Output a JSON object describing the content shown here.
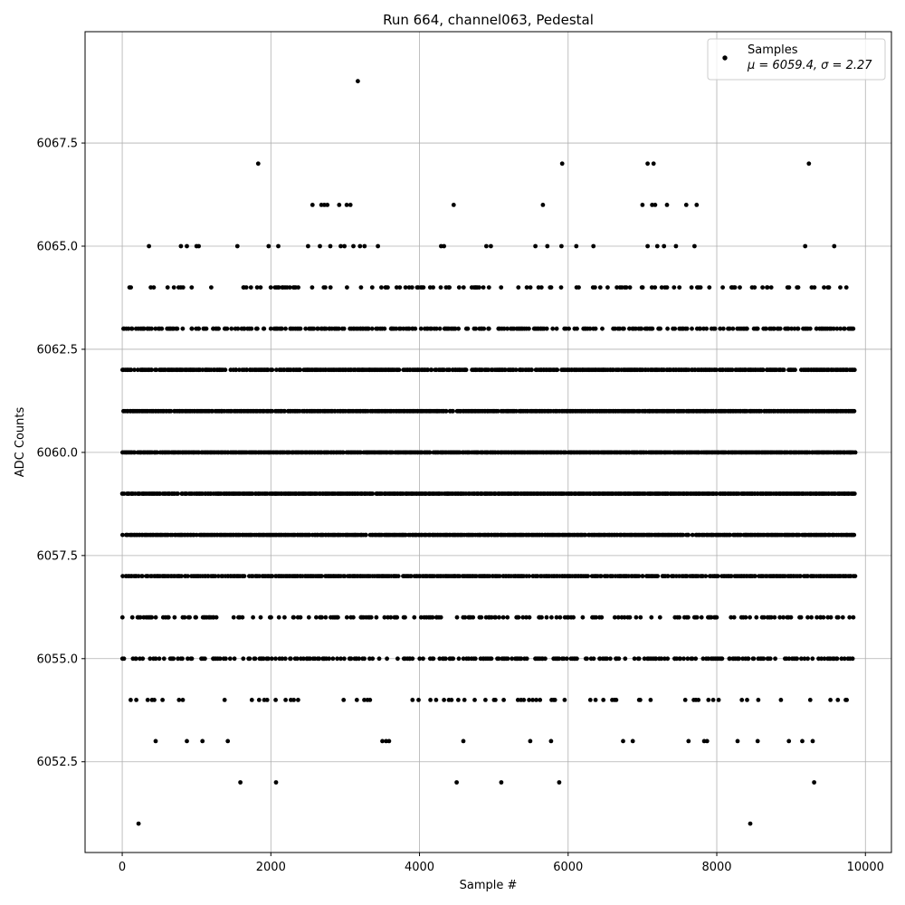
{
  "chart_data": {
    "type": "scatter",
    "title": "Run 664, channel063, Pedestal",
    "xlabel": "Sample #",
    "ylabel": "ADC Counts",
    "xlim": [
      -500,
      10350
    ],
    "ylim": [
      6050.3,
      6070.2
    ],
    "xticks": [
      0,
      2000,
      4000,
      6000,
      8000,
      10000
    ],
    "xtick_labels": [
      "0",
      "2000",
      "4000",
      "6000",
      "8000",
      "10000"
    ],
    "yticks": [
      6052.5,
      6055.0,
      6057.5,
      6060.0,
      6062.5,
      6065.0,
      6067.5
    ],
    "ytick_labels": [
      "6052.5",
      "6055.0",
      "6057.5",
      "6060.0",
      "6062.5",
      "6065.0",
      "6067.5"
    ],
    "grid": true,
    "legend": {
      "placement": "top-right",
      "series_label": "Samples",
      "stats_label": "μ = 6059.4, σ = 2.27"
    },
    "marker_color": "#000000",
    "n_samples": 9850,
    "band_presence": {
      "description": "count of points per ADC value level, read from density of the stripes",
      "6057.0": "dense",
      "6058.0": "dense",
      "6059.0": "dense",
      "6060.0": "dense",
      "6061.0": "dense",
      "6062.0": "dense",
      "6056.0": "medium",
      "6063.0": "medium",
      "6055.0": "medium",
      "6064.0": "sparse",
      "6054.0": "sparse"
    },
    "series": [
      {
        "name": "Samples",
        "outliers": [
          {
            "x": 3170,
            "y": 6069
          },
          {
            "x": 1830,
            "y": 6067
          },
          {
            "x": 5920,
            "y": 6067
          },
          {
            "x": 7070,
            "y": 6067
          },
          {
            "x": 7150,
            "y": 6067
          },
          {
            "x": 9240,
            "y": 6067
          },
          {
            "x": 2560,
            "y": 6066
          },
          {
            "x": 2680,
            "y": 6066
          },
          {
            "x": 2720,
            "y": 6066
          },
          {
            "x": 2760,
            "y": 6066
          },
          {
            "x": 2920,
            "y": 6066
          },
          {
            "x": 3020,
            "y": 6066
          },
          {
            "x": 3070,
            "y": 6066
          },
          {
            "x": 4460,
            "y": 6066
          },
          {
            "x": 5660,
            "y": 6066
          },
          {
            "x": 7000,
            "y": 6066
          },
          {
            "x": 7130,
            "y": 6066
          },
          {
            "x": 7170,
            "y": 6066
          },
          {
            "x": 7330,
            "y": 6066
          },
          {
            "x": 7590,
            "y": 6066
          },
          {
            "x": 7730,
            "y": 6066
          },
          {
            "x": 360,
            "y": 6065
          },
          {
            "x": 790,
            "y": 6065
          },
          {
            "x": 870,
            "y": 6065
          },
          {
            "x": 1000,
            "y": 6065
          },
          {
            "x": 1030,
            "y": 6065
          },
          {
            "x": 1550,
            "y": 6065
          },
          {
            "x": 1970,
            "y": 6065
          },
          {
            "x": 2100,
            "y": 6065
          },
          {
            "x": 2500,
            "y": 6065
          },
          {
            "x": 2660,
            "y": 6065
          },
          {
            "x": 2800,
            "y": 6065
          },
          {
            "x": 2940,
            "y": 6065
          },
          {
            "x": 2990,
            "y": 6065
          },
          {
            "x": 3110,
            "y": 6065
          },
          {
            "x": 3200,
            "y": 6065
          },
          {
            "x": 3260,
            "y": 6065
          },
          {
            "x": 3440,
            "y": 6065
          },
          {
            "x": 4290,
            "y": 6065
          },
          {
            "x": 4330,
            "y": 6065
          },
          {
            "x": 4900,
            "y": 6065
          },
          {
            "x": 4960,
            "y": 6065
          },
          {
            "x": 5560,
            "y": 6065
          },
          {
            "x": 5720,
            "y": 6065
          },
          {
            "x": 5910,
            "y": 6065
          },
          {
            "x": 6110,
            "y": 6065
          },
          {
            "x": 6340,
            "y": 6065
          },
          {
            "x": 7070,
            "y": 6065
          },
          {
            "x": 7200,
            "y": 6065
          },
          {
            "x": 7290,
            "y": 6065
          },
          {
            "x": 7450,
            "y": 6065
          },
          {
            "x": 7700,
            "y": 6065
          },
          {
            "x": 9190,
            "y": 6065
          },
          {
            "x": 9580,
            "y": 6065
          },
          {
            "x": 1590,
            "y": 6052
          },
          {
            "x": 2070,
            "y": 6052
          },
          {
            "x": 4500,
            "y": 6052
          },
          {
            "x": 5100,
            "y": 6052
          },
          {
            "x": 5880,
            "y": 6052
          },
          {
            "x": 9310,
            "y": 6052
          },
          {
            "x": 220,
            "y": 6051
          },
          {
            "x": 8450,
            "y": 6051
          },
          {
            "x": 450,
            "y": 6053
          },
          {
            "x": 870,
            "y": 6053
          },
          {
            "x": 1080,
            "y": 6053
          },
          {
            "x": 1420,
            "y": 6053
          },
          {
            "x": 3500,
            "y": 6053
          },
          {
            "x": 3550,
            "y": 6053
          },
          {
            "x": 3590,
            "y": 6053
          },
          {
            "x": 4590,
            "y": 6053
          },
          {
            "x": 5490,
            "y": 6053
          },
          {
            "x": 5770,
            "y": 6053
          },
          {
            "x": 6740,
            "y": 6053
          },
          {
            "x": 6870,
            "y": 6053
          },
          {
            "x": 7620,
            "y": 6053
          },
          {
            "x": 7830,
            "y": 6053
          },
          {
            "x": 7870,
            "y": 6053
          },
          {
            "x": 8280,
            "y": 6053
          },
          {
            "x": 8550,
            "y": 6053
          },
          {
            "x": 8970,
            "y": 6053
          },
          {
            "x": 9150,
            "y": 6053
          },
          {
            "x": 9290,
            "y": 6053
          }
        ]
      }
    ]
  }
}
